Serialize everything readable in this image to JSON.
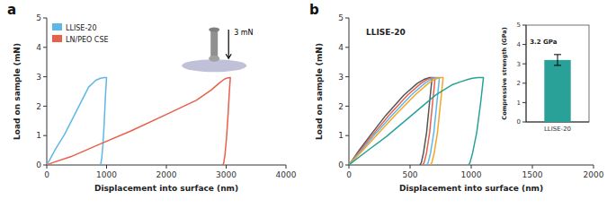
{
  "chart_data": [
    {
      "type": "line",
      "title": "a",
      "xlabel": "Displacement into surface (nm)",
      "ylabel": "Load on sample (mN)",
      "xlim": [
        0,
        4000
      ],
      "ylim": [
        0,
        5
      ],
      "xticks": [
        0,
        1000,
        2000,
        3000,
        4000
      ],
      "yticks": [
        0,
        1,
        2,
        3,
        4,
        5
      ],
      "legend": "upper left",
      "annotation": "3 mN",
      "series": [
        {
          "name": "LLISE-20",
          "color": "#5db8e8",
          "x": [
            0,
            50,
            150,
            300,
            500,
            700,
            820,
            900,
            960,
            990,
            990,
            1000,
            1000,
            980,
            960,
            940,
            920,
            905,
            895
          ],
          "values": [
            0,
            0.18,
            0.55,
            1.05,
            1.85,
            2.65,
            2.88,
            2.95,
            2.97,
            2.97,
            2.97,
            2.97,
            2.97,
            2.3,
            1.4,
            0.7,
            0.25,
            0.05,
            0.0
          ]
        },
        {
          "name": "LN/PEO CSE",
          "color": "#e8604c",
          "x": [
            0,
            100,
            400,
            900,
            1400,
            2000,
            2500,
            2750,
            2880,
            2970,
            3020,
            3060,
            3060,
            3070,
            3070,
            3055,
            3030,
            3005,
            2980,
            2960,
            2945
          ],
          "values": [
            0,
            0.08,
            0.28,
            0.72,
            1.15,
            1.72,
            2.2,
            2.55,
            2.78,
            2.92,
            2.96,
            2.97,
            2.97,
            2.97,
            2.97,
            2.55,
            1.65,
            0.9,
            0.35,
            0.08,
            0.0
          ]
        }
      ]
    },
    {
      "type": "line",
      "title": "b",
      "xlabel": "Displacement into surface (nm)",
      "ylabel": "Load on sample (mN)",
      "xlim": [
        0,
        2000
      ],
      "ylim": [
        0,
        5
      ],
      "xticks": [
        0,
        500,
        1000,
        1500,
        2000
      ],
      "yticks": [
        0,
        1,
        2,
        3,
        4,
        5
      ],
      "annotation": "LLISE-20",
      "series": [
        {
          "color": "#555555",
          "x": [
            0,
            25,
            80,
            170,
            300,
            450,
            560,
            620,
            660,
            680,
            680,
            660,
            635,
            610,
            592,
            580
          ],
          "values": [
            0,
            0.15,
            0.48,
            0.98,
            1.68,
            2.38,
            2.78,
            2.92,
            2.97,
            2.97,
            2.97,
            2.15,
            1.1,
            0.42,
            0.08,
            0.0
          ]
        },
        {
          "color": "#e8604c",
          "x": [
            0,
            28,
            90,
            185,
            325,
            480,
            590,
            645,
            685,
            705,
            705,
            685,
            660,
            635,
            615,
            603
          ],
          "values": [
            0,
            0.15,
            0.48,
            0.98,
            1.68,
            2.38,
            2.78,
            2.92,
            2.97,
            2.97,
            2.97,
            2.15,
            1.1,
            0.42,
            0.08,
            0.0
          ]
        },
        {
          "color": "#5db8e8",
          "x": [
            0,
            30,
            100,
            200,
            350,
            510,
            620,
            675,
            715,
            740,
            740,
            720,
            694,
            668,
            648,
            636
          ],
          "values": [
            0,
            0.15,
            0.48,
            0.98,
            1.68,
            2.38,
            2.78,
            2.92,
            2.97,
            2.97,
            2.97,
            2.15,
            1.1,
            0.42,
            0.08,
            0.0
          ]
        },
        {
          "color": "#f5a623",
          "x": [
            0,
            33,
            110,
            220,
            375,
            540,
            650,
            705,
            745,
            770,
            770,
            750,
            724,
            698,
            678,
            666
          ],
          "values": [
            0,
            0.15,
            0.48,
            0.98,
            1.68,
            2.38,
            2.78,
            2.92,
            2.97,
            2.97,
            2.97,
            2.15,
            1.1,
            0.42,
            0.08,
            0.0
          ]
        },
        {
          "color": "#2aa198",
          "x": [
            0,
            45,
            150,
            310,
            510,
            710,
            840,
            920,
            975,
            1010,
            1055,
            1085,
            1100,
            1100,
            1078,
            1045,
            1012,
            990,
            978
          ],
          "values": [
            0,
            0.15,
            0.48,
            0.98,
            1.68,
            2.38,
            2.72,
            2.84,
            2.91,
            2.95,
            2.97,
            2.97,
            2.97,
            2.97,
            2.15,
            1.1,
            0.42,
            0.08,
            0.0
          ]
        }
      ]
    },
    {
      "type": "bar",
      "categories": [
        "LLISE-20"
      ],
      "values": [
        3.2
      ],
      "errors": [
        0.28
      ],
      "color": "#2aa198",
      "ylabel": "Compressive strength (GPa)",
      "ylim": [
        0,
        5
      ],
      "yticks": [
        0,
        1,
        2,
        3,
        4,
        5
      ],
      "annotation": "3.2 GPa"
    }
  ]
}
